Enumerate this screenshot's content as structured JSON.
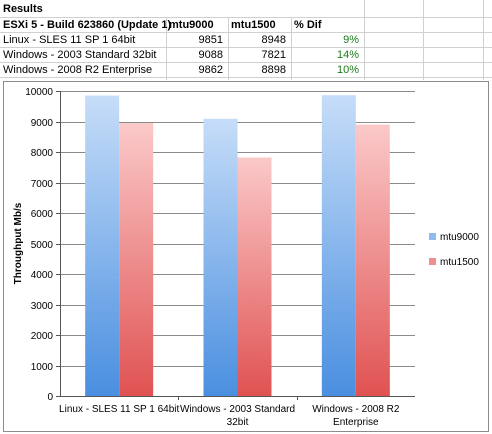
{
  "table": {
    "title": "Results",
    "headers": [
      "ESXi 5 - Build 623860 (Update 1)",
      "mtu9000",
      "mtu1500",
      "% Dif"
    ],
    "rows": [
      [
        "Linux - SLES 11 SP 1 64bit",
        "9851",
        "8948",
        "9%"
      ],
      [
        "Windows - 2003 Standard 32bit",
        "9088",
        "7821",
        "14%"
      ],
      [
        "Windows - 2008 R2 Enterprise",
        "9862",
        "8898",
        "10%"
      ]
    ]
  },
  "chart_data": {
    "type": "bar",
    "categories": [
      "Linux - SLES 11 SP 1 64bit",
      "Windows - 2003 Standard 32bit",
      "Windows - 2008 R2 Enterprise"
    ],
    "category_lines": [
      [
        "Linux - SLES 11 SP 1 64bit"
      ],
      [
        "Windows - 2003 Standard",
        "32bit"
      ],
      [
        "Windows - 2008 R2",
        "Enterprise"
      ]
    ],
    "series": [
      {
        "name": "mtu9000",
        "values": [
          9851,
          9088,
          9862
        ],
        "color": "#8fbcef"
      },
      {
        "name": "mtu1500",
        "values": [
          8948,
          7821,
          8898
        ],
        "color": "#ee9090"
      }
    ],
    "ylabel": "Throughput Mb/s",
    "ylim": [
      0,
      10000
    ],
    "yticks": [
      0,
      1000,
      2000,
      3000,
      4000,
      5000,
      6000,
      7000,
      8000,
      9000,
      10000
    ],
    "grid": true,
    "legend": "right"
  }
}
